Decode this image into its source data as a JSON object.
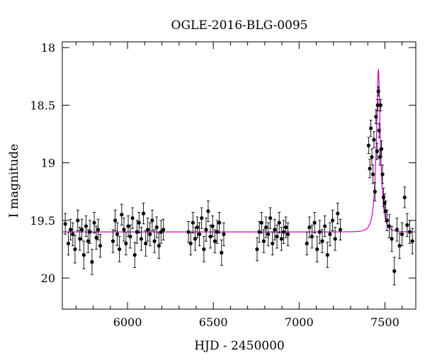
{
  "chart_data": {
    "type": "scatter",
    "title": "OGLE-2016-BLG-0095",
    "xlabel": "HJD - 2450000",
    "ylabel": "I magnitude",
    "xlim": [
      5620,
      7680
    ],
    "ylim": [
      20.27,
      17.95
    ],
    "y_inverted": true,
    "xticks": [
      6000,
      6500,
      7000,
      7500
    ],
    "xtick_labels": [
      "6000",
      "6500",
      "7000",
      "7500"
    ],
    "yticks": [
      18,
      18.5,
      19,
      19.5,
      20
    ],
    "ytick_labels": [
      "18",
      "18.5",
      "19",
      "19.5",
      "20"
    ],
    "grid": false,
    "colors": {
      "data": "#000000",
      "model": "#cc00cc"
    },
    "model": {
      "name": "",
      "baseline": 19.6,
      "t0": 7462,
      "tE": 26,
      "u0": 0.28
    },
    "series": [
      {
        "x": [
          5637,
          5655,
          5668,
          5681,
          5694,
          5710,
          5722,
          5734,
          5745,
          5758,
          5770,
          5781,
          5793,
          5806,
          5818,
          5829,
          5841,
          5915,
          5928,
          5940,
          5953,
          5966,
          5979,
          5991,
          6004,
          6016,
          6029,
          6042,
          6055,
          6067,
          6080,
          6093,
          6106,
          6118,
          6131,
          6144,
          6157,
          6170,
          6183,
          6195,
          6209,
          6355,
          6368,
          6381,
          6394,
          6406,
          6419,
          6432,
          6445,
          6458,
          6470,
          6483,
          6496,
          6509,
          6522,
          6535,
          6548,
          6561,
          6755,
          6768,
          6781,
          6794,
          6807,
          6820,
          6832,
          6845,
          6858,
          6871,
          6884,
          6897,
          6910,
          6923,
          6935,
          7045,
          7060,
          7075,
          7090,
          7105,
          7120,
          7135,
          7150,
          7165,
          7180,
          7195,
          7210,
          7225,
          7240,
          7405,
          7412,
          7418,
          7424,
          7430,
          7436,
          7442,
          7448,
          7454,
          7458,
          7462,
          7466,
          7470,
          7475,
          7480,
          7486,
          7492,
          7498,
          7505,
          7512,
          7525,
          7540,
          7555,
          7570,
          7585,
          7600,
          7615,
          7630,
          7645,
          7660
        ],
        "y": [
          19.53,
          19.7,
          19.58,
          19.62,
          19.75,
          19.5,
          19.66,
          19.58,
          19.8,
          19.55,
          19.68,
          19.6,
          19.86,
          19.52,
          19.65,
          19.58,
          19.72,
          19.68,
          19.5,
          19.62,
          19.75,
          19.45,
          19.58,
          19.7,
          19.55,
          19.64,
          19.48,
          19.8,
          19.6,
          19.52,
          19.66,
          19.44,
          19.7,
          19.58,
          19.62,
          19.5,
          19.68,
          19.56,
          19.72,
          19.6,
          19.58,
          19.6,
          19.7,
          19.52,
          19.66,
          19.56,
          19.62,
          19.48,
          19.75,
          19.58,
          19.42,
          19.64,
          19.55,
          19.68,
          19.6,
          19.52,
          19.78,
          19.62,
          19.75,
          19.6,
          19.52,
          19.68,
          19.56,
          19.62,
          19.48,
          19.7,
          19.58,
          19.64,
          19.52,
          19.66,
          19.6,
          19.56,
          19.62,
          19.7,
          19.56,
          19.64,
          19.52,
          19.75,
          19.6,
          19.68,
          19.55,
          19.8,
          19.62,
          19.5,
          19.66,
          19.44,
          19.58,
          18.85,
          19.05,
          18.7,
          18.95,
          19.1,
          18.8,
          19.25,
          18.6,
          18.9,
          18.5,
          18.38,
          18.72,
          18.95,
          18.5,
          18.88,
          19.1,
          19.3,
          19.35,
          19.42,
          19.5,
          19.55,
          19.66,
          19.94,
          19.58,
          19.72,
          19.62,
          19.3,
          19.54,
          19.6,
          19.68
        ],
        "err": [
          0.09,
          0.1,
          0.09,
          0.1,
          0.12,
          0.09,
          0.1,
          0.09,
          0.12,
          0.09,
          0.1,
          0.1,
          0.11,
          0.09,
          0.1,
          0.09,
          0.1,
          0.1,
          0.09,
          0.1,
          0.11,
          0.09,
          0.1,
          0.1,
          0.09,
          0.1,
          0.09,
          0.11,
          0.1,
          0.09,
          0.1,
          0.09,
          0.11,
          0.1,
          0.1,
          0.09,
          0.1,
          0.09,
          0.11,
          0.1,
          0.09,
          0.09,
          0.1,
          0.09,
          0.1,
          0.09,
          0.1,
          0.09,
          0.11,
          0.1,
          0.09,
          0.1,
          0.09,
          0.1,
          0.1,
          0.09,
          0.11,
          0.1,
          0.1,
          0.09,
          0.09,
          0.1,
          0.09,
          0.1,
          0.09,
          0.1,
          0.09,
          0.1,
          0.09,
          0.1,
          0.1,
          0.09,
          0.1,
          0.1,
          0.09,
          0.1,
          0.09,
          0.11,
          0.1,
          0.1,
          0.09,
          0.11,
          0.1,
          0.09,
          0.1,
          0.09,
          0.09,
          0.07,
          0.08,
          0.07,
          0.07,
          0.08,
          0.07,
          0.08,
          0.06,
          0.07,
          0.05,
          0.04,
          0.06,
          0.07,
          0.05,
          0.07,
          0.08,
          0.08,
          0.08,
          0.09,
          0.09,
          0.1,
          0.11,
          0.12,
          0.1,
          0.11,
          0.1,
          0.09,
          0.1,
          0.1,
          0.11
        ]
      }
    ]
  }
}
